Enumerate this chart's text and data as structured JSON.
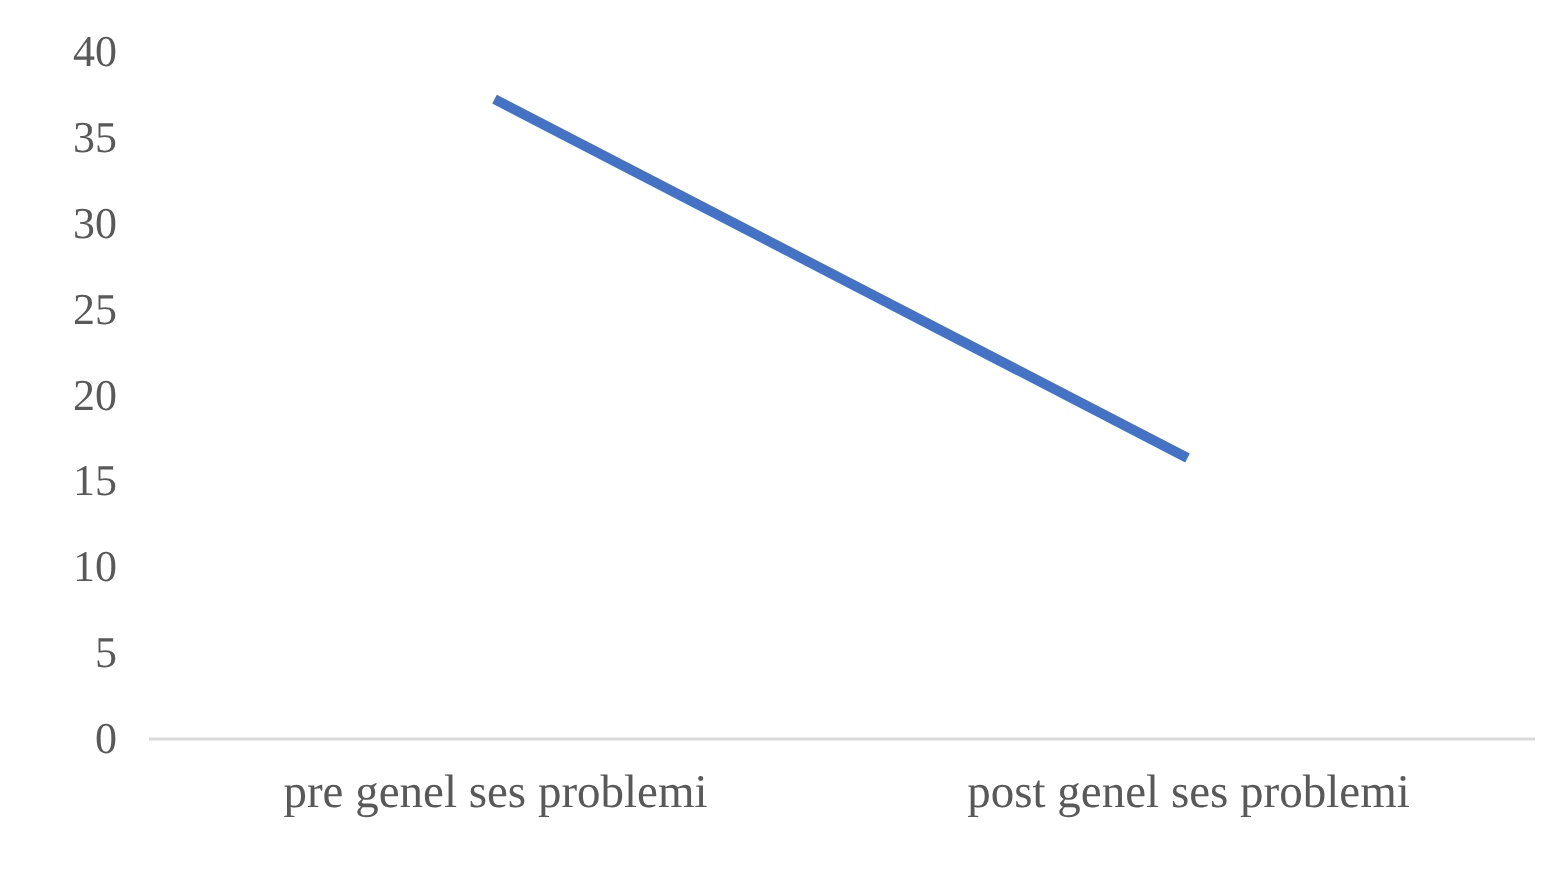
{
  "chart_data": {
    "type": "line",
    "categories": [
      "pre genel ses problemi",
      "post genel ses problemi"
    ],
    "series": [
      {
        "color": "#4472c4",
        "values": [
          37.2,
          16.3
        ]
      }
    ],
    "ylim": [
      0,
      40
    ],
    "yticks": [
      0,
      5,
      10,
      15,
      20,
      25,
      30,
      35,
      40
    ],
    "grid": false
  }
}
